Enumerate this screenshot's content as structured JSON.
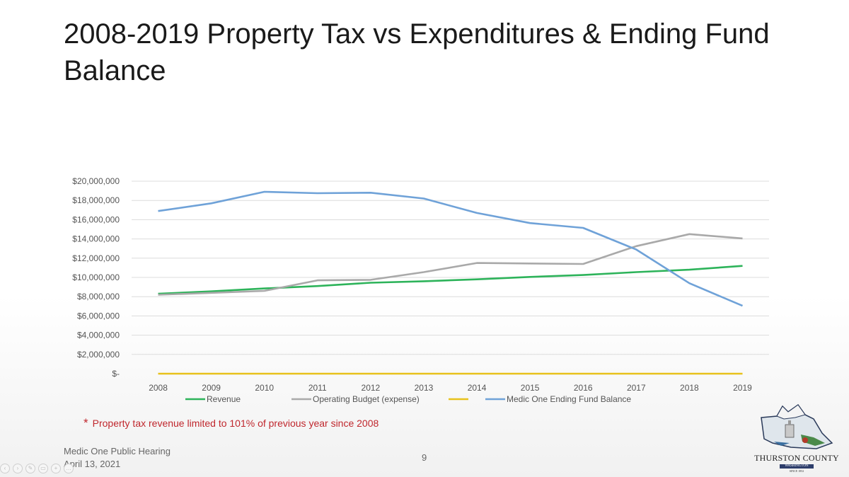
{
  "slide": {
    "title": "2008-2019 Property Tax vs Expenditures & Ending Fund Balance",
    "footnote_star": "*",
    "footnote_text": "Property tax revenue limited to 101% of previous year since 2008",
    "footer_line1": "Medic One  Public Hearing",
    "footer_line2": "April 13, 2021",
    "page_number": "9",
    "logo_text": "THURSTON COUNTY",
    "logo_sub": "WASHINGTON",
    "logo_since": "SINCE 1852"
  },
  "toolbar": {
    "icons": [
      "previous-icon",
      "next-icon",
      "pen-icon",
      "view-icon",
      "zoom-icon",
      "more-icon"
    ]
  },
  "chart_data": {
    "type": "line",
    "x": [
      "2008",
      "2009",
      "2010",
      "2011",
      "2012",
      "2013",
      "2014",
      "2015",
      "2016",
      "2017",
      "2018",
      "2019"
    ],
    "ylim": [
      0,
      20000000
    ],
    "yticks": [
      0,
      2000000,
      4000000,
      6000000,
      8000000,
      10000000,
      12000000,
      14000000,
      16000000,
      18000000,
      20000000
    ],
    "ytick_labels": [
      "$-",
      "$2,000,000",
      "$4,000,000",
      "$6,000,000",
      "$8,000,000",
      "$10,000,000",
      "$12,000,000",
      "$14,000,000",
      "$16,000,000",
      "$18,000,000",
      "$20,000,000"
    ],
    "grid": true,
    "legend_position": "bottom",
    "series": [
      {
        "name": "Revenue",
        "color": "#2db35a",
        "values": [
          8300000,
          8550000,
          8850000,
          9100000,
          9450000,
          9600000,
          9800000,
          10050000,
          10250000,
          10550000,
          10800000,
          11200000
        ]
      },
      {
        "name": "Operating Budget (expense)",
        "color": "#a9a9a9",
        "values": [
          8200000,
          8400000,
          8600000,
          9700000,
          9750000,
          10550000,
          11500000,
          11450000,
          11400000,
          13250000,
          14500000,
          14050000
        ]
      },
      {
        "name": "",
        "color": "#e8c21c",
        "values": [
          0,
          0,
          0,
          0,
          0,
          0,
          0,
          0,
          0,
          0,
          0,
          0
        ]
      },
      {
        "name": "Medic One Ending Fund Balance",
        "color": "#6fa2d8",
        "values": [
          16900000,
          17700000,
          18900000,
          18750000,
          18800000,
          18200000,
          16700000,
          15650000,
          15150000,
          12900000,
          9400000,
          7050000
        ]
      }
    ]
  }
}
